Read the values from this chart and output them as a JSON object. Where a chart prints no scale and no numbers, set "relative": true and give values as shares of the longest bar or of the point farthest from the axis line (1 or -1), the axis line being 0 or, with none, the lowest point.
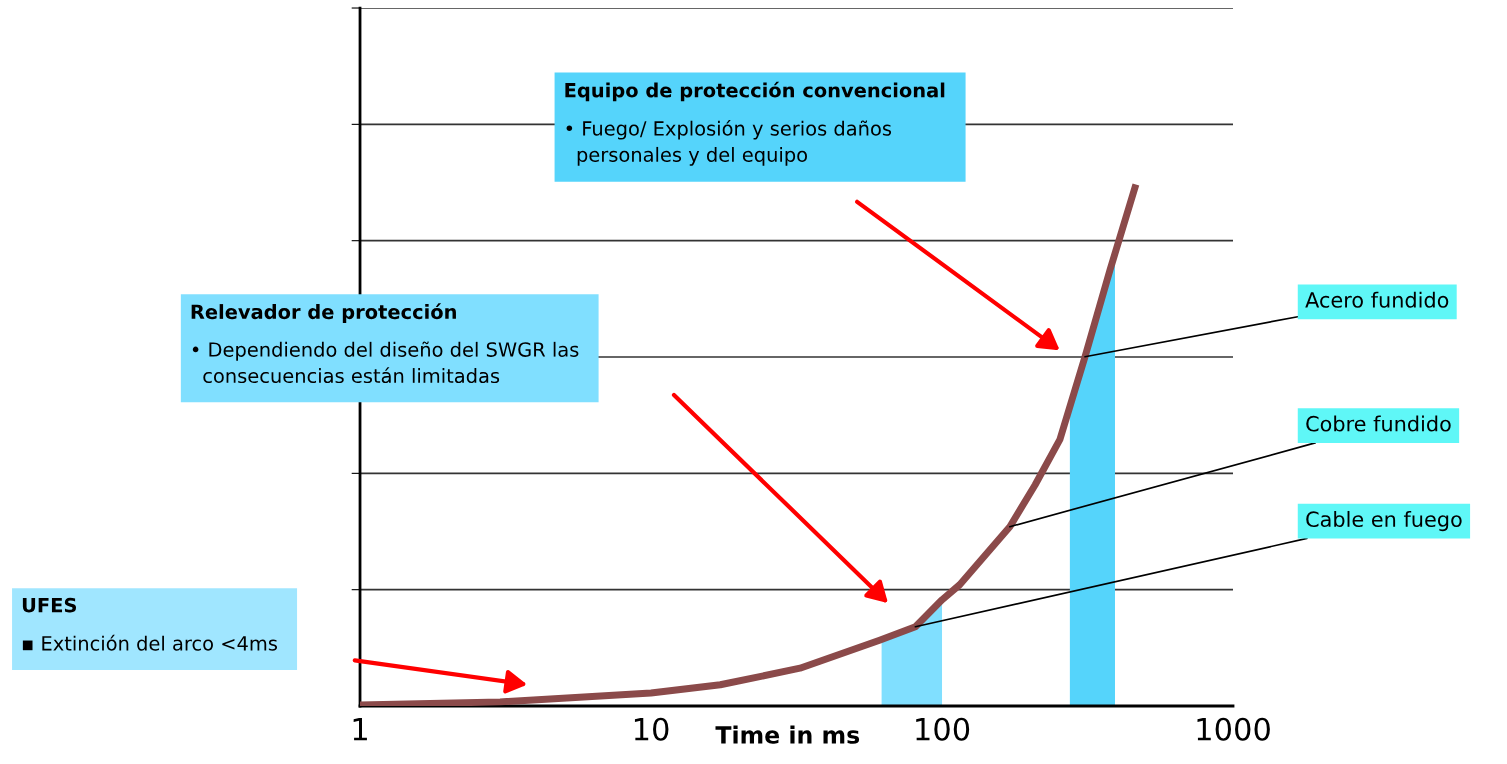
{
  "chart_data": {
    "type": "line",
    "relative": true,
    "log": "x",
    "xlabel": "Time in ms",
    "xlim": [
      1,
      1000
    ],
    "xticks": [
      1,
      10,
      100,
      1000
    ],
    "tick_labels": "x",
    "grid": "y",
    "marker": "none",
    "line_style": "solid",
    "series": [
      {
        "color": "#8b4a4a",
        "x": [
          1,
          3.03,
          10,
          17.3,
          32.5,
          61,
          81,
          100,
          115,
          171,
          209,
          254,
          310,
          378,
          416,
          460
        ],
        "values": [
          0.002,
          0.008,
          0.025,
          0.041,
          0.073,
          0.127,
          0.153,
          0.205,
          0.234,
          0.346,
          0.427,
          0.514,
          0.674,
          0.842,
          0.919,
          1
        ]
      }
    ],
    "bands": [
      {
        "axis": "x",
        "from": 62,
        "to": 100,
        "color": "#80dfff"
      },
      {
        "axis": "x",
        "from": 275,
        "to": 393,
        "color": "#55d4fb"
      }
    ],
    "annotations": [
      "Equipo de protección convencional\n• Fuego/ Explosión y serios daños\n  personales y del equipo",
      "Relevador de protección\n• Dependiendo del diseño del SWGR las\n  consecuencias están limitadas",
      "UFES\n▪ Extinción del arco <4ms",
      {
        "text": "Acero fundido",
        "x": 310,
        "y": 0.674
      },
      {
        "text": "Cobre fundido",
        "x": 171,
        "y": 0.346
      },
      {
        "text": "Cable en fuego",
        "x": 81,
        "y": 0.153
      }
    ]
  }
}
